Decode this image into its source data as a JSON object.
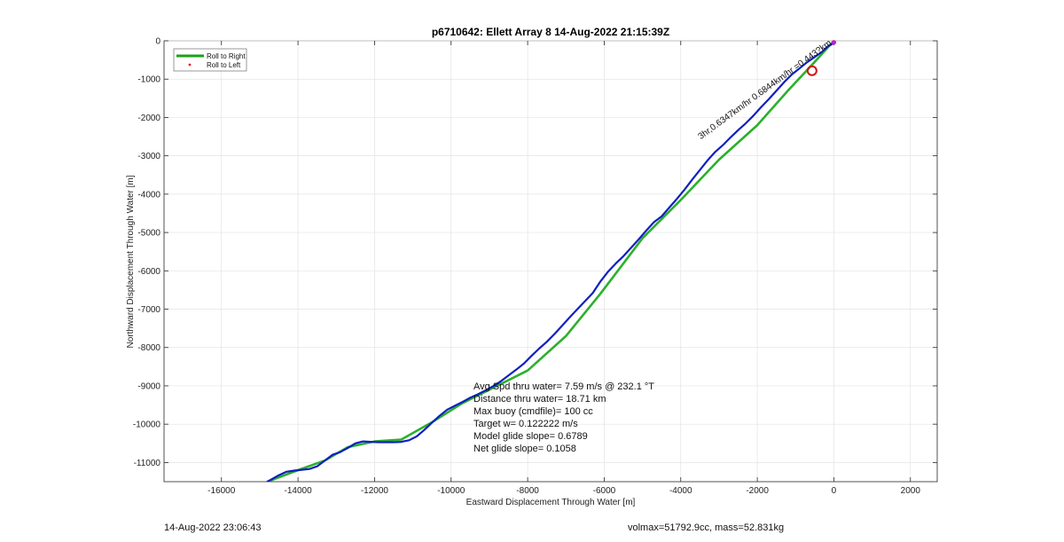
{
  "footer": {
    "timestamp": "14-Aug-2022 23:06:43",
    "volume_mass": "volmax=51792.9cc, mass=52.831kg"
  },
  "chart_data": {
    "type": "line",
    "title": "p6710642: Ellett Array 8 14-Aug-2022 21:15:39Z",
    "xlabel": "Eastward Displacement Through Water [m]",
    "ylabel": "Northward Displacement Through Water [m]",
    "xlim": [
      -17500,
      2700
    ],
    "ylim": [
      -11500,
      0
    ],
    "xticks": [
      -16000,
      -14000,
      -12000,
      -10000,
      -8000,
      -6000,
      -4000,
      -2000,
      0,
      2000
    ],
    "yticks": [
      0,
      -1000,
      -2000,
      -3000,
      -4000,
      -5000,
      -6000,
      -7000,
      -8000,
      -9000,
      -10000,
      -11000
    ],
    "grid": true,
    "legend_position": "top-left",
    "legend": [
      {
        "label": "Roll to Right",
        "color": "#1aa01a",
        "marker": "line"
      },
      {
        "label": "Roll to Left",
        "color": "#e02020",
        "marker": "dot"
      }
    ],
    "series": [
      {
        "name": "Roll to Right",
        "color": "#2bb02b",
        "x": [
          0,
          -500,
          -1200,
          -2000,
          -3000,
          -4000,
          -5000,
          -6100,
          -7000,
          -8000,
          -9000,
          -9700,
          -10500,
          -11300,
          -12000,
          -12700,
          -13300,
          -14000,
          -14800
        ],
        "y": [
          0,
          -550,
          -1300,
          -2200,
          -3100,
          -4150,
          -5150,
          -6600,
          -7700,
          -8600,
          -9100,
          -9450,
          -9950,
          -10400,
          -10450,
          -10600,
          -10950,
          -11200,
          -11500
        ]
      },
      {
        "name": "",
        "color": "#1020c0",
        "x": [
          0,
          -150,
          -300,
          -500,
          -700,
          -900,
          -1100,
          -1300,
          -1500,
          -1700,
          -1900,
          -2100,
          -2300,
          -2500,
          -2700,
          -2900,
          -3100,
          -3300,
          -3500,
          -3700,
          -3900,
          -4100,
          -4300,
          -4500,
          -4700,
          -4900,
          -5100,
          -5300,
          -5500,
          -5700,
          -5900,
          -6100,
          -6300,
          -6500,
          -6700,
          -6900,
          -7100,
          -7300,
          -7500,
          -7700,
          -7900,
          -8100,
          -8300,
          -8500,
          -8700,
          -8900,
          -9100,
          -9300,
          -9500,
          -9700,
          -9900,
          -10100,
          -10300,
          -10500,
          -10700,
          -10900,
          -11100,
          -11300,
          -11500,
          -11700,
          -11900,
          -12100,
          -12300,
          -12500,
          -12700,
          -12900,
          -13100,
          -13300,
          -13500,
          -13700,
          -13900,
          -14100,
          -14300,
          -14500,
          -14800
        ],
        "y": [
          -60,
          -140,
          -280,
          -420,
          -560,
          -720,
          -880,
          -1080,
          -1300,
          -1520,
          -1730,
          -1950,
          -2150,
          -2330,
          -2520,
          -2720,
          -2900,
          -3120,
          -3370,
          -3620,
          -3880,
          -4120,
          -4350,
          -4580,
          -4730,
          -4950,
          -5180,
          -5400,
          -5620,
          -5810,
          -6020,
          -6280,
          -6580,
          -6790,
          -7000,
          -7210,
          -7430,
          -7650,
          -7850,
          -8030,
          -8220,
          -8420,
          -8580,
          -8730,
          -8880,
          -9010,
          -9120,
          -9220,
          -9310,
          -9420,
          -9520,
          -9620,
          -9780,
          -9960,
          -10150,
          -10320,
          -10420,
          -10460,
          -10470,
          -10470,
          -10470,
          -10460,
          -10450,
          -10500,
          -10620,
          -10730,
          -10800,
          -10950,
          -11100,
          -11170,
          -11190,
          -11210,
          -11240,
          -11330,
          -11500
        ]
      }
    ],
    "markers": [
      {
        "type": "circle",
        "x": -570,
        "y": -780,
        "color": "#d01010"
      },
      {
        "type": "dot",
        "x": 0,
        "y": -40,
        "color": "#c020c0"
      }
    ],
    "rotated_annotation": "3hr,0.6347km/hr 0.6844km/hr =0.443?km",
    "annotations": [
      "Avg Spd thru water=  7.59 m/s @ 232.1 °T",
      "Distance thru water= 18.71 km",
      "Max buoy (cmdfile)= 100 cc",
      "Target w= 0.122222 m/s",
      "Model glide slope= 0.6789",
      "Net glide slope= 0.1058"
    ]
  }
}
